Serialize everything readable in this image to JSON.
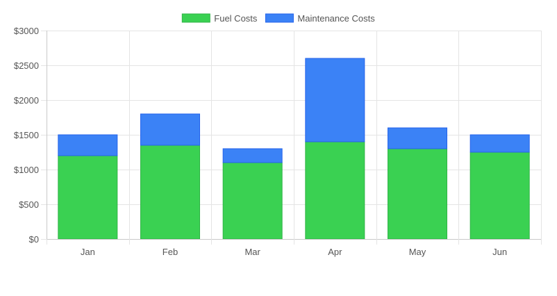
{
  "chart_data": {
    "type": "bar",
    "stacked": true,
    "categories": [
      "Jan",
      "Feb",
      "Mar",
      "Apr",
      "May",
      "Jun"
    ],
    "series": [
      {
        "name": "Fuel Costs",
        "values": [
          1200,
          1350,
          1100,
          1400,
          1300,
          1250
        ],
        "color": "#3ad152",
        "border": "#2fb345"
      },
      {
        "name": "Maintenance Costs",
        "values": [
          300,
          450,
          200,
          1200,
          300,
          250
        ],
        "color": "#3b82f6",
        "border": "#2563eb"
      }
    ],
    "ylim": [
      0,
      3000
    ],
    "yticks": [
      0,
      500,
      1000,
      1500,
      2000,
      2500,
      3000
    ],
    "ytick_prefix": "$",
    "grid": true,
    "legend_position": "top"
  }
}
